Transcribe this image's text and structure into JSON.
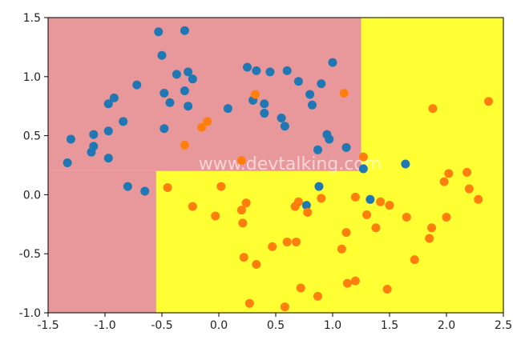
{
  "chart_data": {
    "type": "scatter",
    "title": "",
    "xlabel": "",
    "ylabel": "",
    "xlim": [
      -1.5,
      2.5
    ],
    "ylim": [
      -1.0,
      1.5
    ],
    "grid": false,
    "x_ticks": [
      "-1.5",
      "-1.0",
      "-0.5",
      "0.0",
      "0.5",
      "1.0",
      "1.5",
      "2.0",
      "2.5"
    ],
    "y_ticks": [
      "1.5",
      "1.0",
      "0.5",
      "0.0",
      "-0.5",
      "-1.0"
    ],
    "watermark": "www.devtalking.com",
    "decision_regions": [
      {
        "class": 0,
        "color": "#e8989a",
        "x_range": [
          -1.5,
          1.25
        ],
        "y_range": [
          0.2,
          1.5
        ]
      },
      {
        "class": 0,
        "color": "#e8989a",
        "x_range": [
          -1.5,
          -0.55
        ],
        "y_range": [
          -1.0,
          0.2
        ]
      },
      {
        "class": 1,
        "color": "#ffff33",
        "x_range": [
          1.25,
          2.5
        ],
        "y_range": [
          0.2,
          1.5
        ]
      },
      {
        "class": 1,
        "color": "#ffff33",
        "x_range": [
          -0.55,
          2.5
        ],
        "y_range": [
          -1.0,
          0.2
        ]
      }
    ],
    "series": [
      {
        "color": "#1f77b4",
        "points": [
          [
            -1.3,
            0.47
          ],
          [
            -1.33,
            0.27
          ],
          [
            -1.1,
            0.41
          ],
          [
            -1.12,
            0.36
          ],
          [
            -1.1,
            0.51
          ],
          [
            -0.97,
            0.77
          ],
          [
            -0.92,
            0.82
          ],
          [
            -0.97,
            0.54
          ],
          [
            -0.97,
            0.31
          ],
          [
            -0.84,
            0.62
          ],
          [
            -0.8,
            0.07
          ],
          [
            -0.65,
            0.03
          ],
          [
            -0.72,
            0.93
          ],
          [
            -0.5,
            1.18
          ],
          [
            -0.53,
            1.38
          ],
          [
            -0.3,
            1.39
          ],
          [
            -0.48,
            0.86
          ],
          [
            -0.43,
            0.78
          ],
          [
            -0.48,
            0.56
          ],
          [
            -0.37,
            1.02
          ],
          [
            -0.27,
            1.04
          ],
          [
            -0.23,
            0.98
          ],
          [
            -0.3,
            0.88
          ],
          [
            -0.27,
            0.75
          ],
          [
            0.08,
            0.73
          ],
          [
            0.25,
            1.08
          ],
          [
            0.33,
            1.05
          ],
          [
            0.45,
            1.04
          ],
          [
            0.3,
            0.8
          ],
          [
            0.4,
            0.77
          ],
          [
            0.4,
            0.69
          ],
          [
            0.6,
            1.05
          ],
          [
            0.7,
            0.96
          ],
          [
            0.55,
            0.65
          ],
          [
            0.58,
            0.58
          ],
          [
            0.8,
            0.85
          ],
          [
            0.82,
            0.76
          ],
          [
            0.9,
            0.94
          ],
          [
            1.0,
            1.12
          ],
          [
            0.95,
            0.51
          ],
          [
            0.97,
            0.47
          ],
          [
            0.87,
            0.38
          ],
          [
            1.12,
            0.4
          ],
          [
            1.27,
            0.22
          ],
          [
            1.64,
            0.26
          ],
          [
            0.88,
            0.07
          ],
          [
            1.33,
            -0.04
          ],
          [
            0.77,
            -0.09
          ]
        ]
      },
      {
        "color": "#ff7f0e",
        "points": [
          [
            1.1,
            0.86
          ],
          [
            1.88,
            0.73
          ],
          [
            2.37,
            0.79
          ],
          [
            0.32,
            0.85
          ],
          [
            -0.1,
            0.62
          ],
          [
            -0.15,
            0.57
          ],
          [
            -0.3,
            0.42
          ],
          [
            1.27,
            0.32
          ],
          [
            0.2,
            0.29
          ],
          [
            -0.45,
            0.06
          ],
          [
            0.02,
            0.07
          ],
          [
            -0.23,
            -0.1
          ],
          [
            -0.03,
            -0.18
          ],
          [
            0.24,
            -0.07
          ],
          [
            0.2,
            -0.13
          ],
          [
            0.21,
            -0.24
          ],
          [
            0.22,
            -0.53
          ],
          [
            0.33,
            -0.59
          ],
          [
            0.47,
            -0.44
          ],
          [
            0.6,
            -0.4
          ],
          [
            0.68,
            -0.4
          ],
          [
            0.67,
            -0.1
          ],
          [
            0.7,
            -0.06
          ],
          [
            0.78,
            -0.15
          ],
          [
            0.9,
            -0.03
          ],
          [
            1.08,
            -0.46
          ],
          [
            1.12,
            -0.32
          ],
          [
            1.2,
            -0.02
          ],
          [
            1.3,
            -0.17
          ],
          [
            1.38,
            -0.28
          ],
          [
            1.42,
            -0.06
          ],
          [
            1.5,
            -0.09
          ],
          [
            1.65,
            -0.19
          ],
          [
            1.72,
            -0.55
          ],
          [
            1.85,
            -0.37
          ],
          [
            1.87,
            -0.28
          ],
          [
            1.98,
            0.11
          ],
          [
            2.02,
            0.18
          ],
          [
            2.0,
            -0.19
          ],
          [
            2.18,
            0.19
          ],
          [
            2.2,
            0.05
          ],
          [
            2.28,
            -0.04
          ],
          [
            0.72,
            -0.79
          ],
          [
            0.87,
            -0.86
          ],
          [
            1.13,
            -0.75
          ],
          [
            1.2,
            -0.73
          ],
          [
            1.48,
            -0.8
          ],
          [
            0.27,
            -0.92
          ],
          [
            0.58,
            -0.95
          ]
        ]
      }
    ]
  }
}
